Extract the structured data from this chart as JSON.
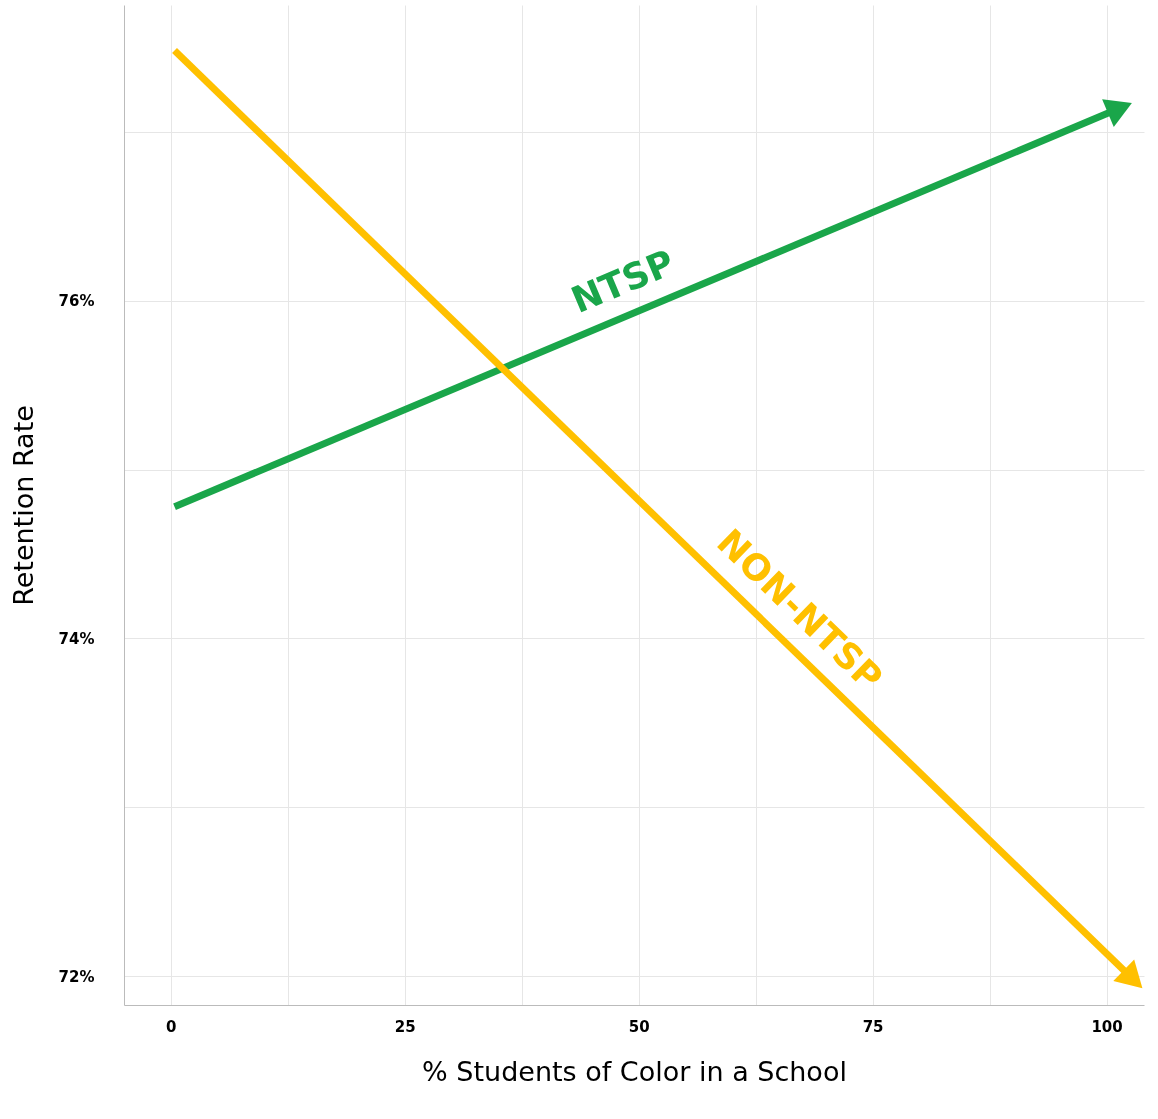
{
  "chart_data": {
    "type": "line",
    "xlabel": "% Students of Color in a School",
    "ylabel": "Retention Rate",
    "series": [
      {
        "name": "NTSP",
        "color": "#1aa64a",
        "x": [
          0.4,
          101
        ],
        "values": [
          74.78,
          77.13
        ]
      },
      {
        "name": "NON-NTSP",
        "color": "#ffc000",
        "x": [
          0.4,
          102.5
        ],
        "values": [
          77.48,
          72.0
        ]
      }
    ],
    "xlim": [
      -5,
      104
    ],
    "ylim": [
      71.83,
      77.75
    ],
    "xticks": [
      0,
      {
        "value": 12.5,
        "label": null
      },
      25,
      {
        "value": 37.5,
        "label": null
      },
      50,
      {
        "value": 62.5,
        "label": null
      },
      75,
      {
        "value": 87.5,
        "label": null
      },
      100
    ],
    "yticks": [
      {
        "value": 72,
        "label": "72%"
      },
      {
        "value": 73,
        "label": null
      },
      {
        "value": 74,
        "label": "74%"
      },
      {
        "value": 75,
        "label": null
      },
      {
        "value": 76,
        "label": "76%"
      },
      {
        "value": 77,
        "label": null
      }
    ],
    "grid": true
  }
}
